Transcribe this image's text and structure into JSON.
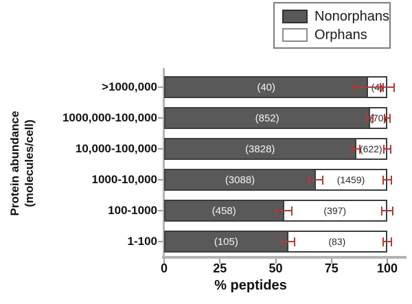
{
  "colors": {
    "nonorphans_fill": "#595959",
    "orphans_fill": "#ffffff",
    "bar_border": "#3d3d3d",
    "error_bar": "#b03a36",
    "axis_line": "#b3b3b3",
    "legend_border": "#7b7b7b"
  },
  "legend": {
    "items": [
      {
        "label": "Nonorphans"
      },
      {
        "label": "Orphans"
      }
    ]
  },
  "axes": {
    "y_title_line1": "Protein abundance",
    "y_title_line2": "(molecules/cell)",
    "x_title": "% peptides",
    "x_ticks": [
      "0",
      "25",
      "50",
      "75",
      "100"
    ]
  },
  "chart_data": {
    "type": "bar",
    "orientation": "horizontal",
    "stacked": true,
    "title": "",
    "xlabel": "% peptides",
    "ylabel": "Protein abundance (molecules/cell)",
    "xlim": [
      0,
      100
    ],
    "legend_position": "top-right",
    "grid": false,
    "categories": [
      ">1000,000",
      "1000,000-100,000",
      "10,000-100,000",
      "1000-10,000",
      "100-1000",
      "1-100"
    ],
    "series": [
      {
        "name": "Nonorphans",
        "counts": [
          40,
          852,
          3828,
          3088,
          458,
          105
        ],
        "pct": [
          91.5,
          92.4,
          86.0,
          68.0,
          53.7,
          55.6
        ]
      },
      {
        "name": "Orphans",
        "counts": [
          4,
          70,
          622,
          1459,
          397,
          83
        ],
        "pct": [
          8.5,
          7.6,
          14.0,
          32.0,
          46.3,
          44.4
        ]
      }
    ],
    "rows": [
      {
        "category": ">1000,000",
        "nonorphans_label": "(40)",
        "orphans_label": "(4)",
        "nonorphans_pct": 91.5,
        "orphans_pct": 8.5,
        "err_split": 6.5,
        "err_end": 3.0
      },
      {
        "category": "1000,000-100,000",
        "nonorphans_label": "(852)",
        "orphans_label": "(70)",
        "nonorphans_pct": 92.4,
        "orphans_pct": 7.6,
        "err_split": 1.2,
        "err_end": 1.2
      },
      {
        "category": "10,000-100,000",
        "nonorphans_label": "(3828)",
        "orphans_label": "(622)",
        "nonorphans_pct": 86.0,
        "orphans_pct": 14.0,
        "err_split": 1.8,
        "err_end": 1.5
      },
      {
        "category": "1000-10,000",
        "nonorphans_label": "(3088)",
        "orphans_label": "(1459)",
        "nonorphans_pct": 68.0,
        "orphans_pct": 32.0,
        "err_split": 3.0,
        "err_end": 1.9
      },
      {
        "category": "100-1000",
        "nonorphans_label": "(458)",
        "orphans_label": "(397)",
        "nonorphans_pct": 53.7,
        "orphans_pct": 46.3,
        "err_split": 3.6,
        "err_end": 2.6
      },
      {
        "category": "1-100",
        "nonorphans_label": "(105)",
        "orphans_label": "(83)",
        "nonorphans_pct": 55.6,
        "orphans_pct": 44.4,
        "err_split": 2.8,
        "err_end": 1.8
      }
    ]
  }
}
